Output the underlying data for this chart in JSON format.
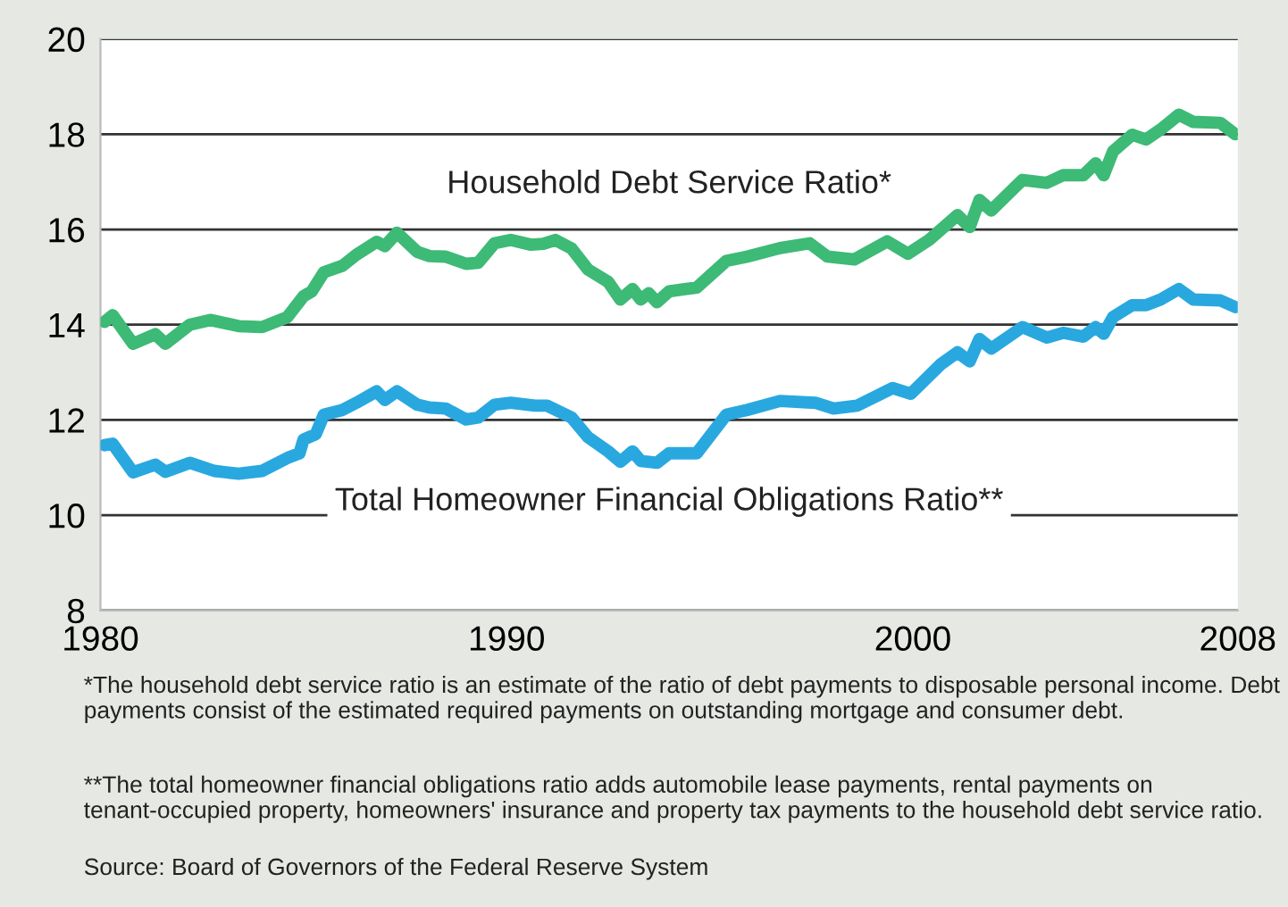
{
  "chart_data": {
    "type": "line",
    "xlim": [
      1980,
      2008
    ],
    "xticks": [
      1980,
      1990,
      2000,
      2008
    ],
    "ylim": [
      8,
      20
    ],
    "yticks": [
      8,
      10,
      12,
      14,
      16,
      18,
      20
    ],
    "grid": "y",
    "legend": false,
    "marker": "none",
    "line_style": "solid",
    "series": [
      {
        "name": "Household Debt Service Ratio*",
        "color": "#3dba76",
        "x": [
          1980.1,
          1980.3,
          1980.8,
          1981.35,
          1981.6,
          1982.2,
          1982.7,
          1983.4,
          1983.98,
          1984.6,
          1985.0,
          1985.2,
          1985.5,
          1985.96,
          1986.3,
          1986.8,
          1987.0,
          1987.3,
          1987.8,
          1988.1,
          1988.5,
          1989.0,
          1989.3,
          1989.7,
          1990.1,
          1990.6,
          1990.9,
          1991.2,
          1991.6,
          1992.0,
          1992.5,
          1992.8,
          1993.1,
          1993.3,
          1993.5,
          1993.7,
          1994.0,
          1994.68,
          1995.41,
          1995.92,
          1996.73,
          1997.46,
          1997.9,
          1998.56,
          1999.37,
          1999.88,
          2000.4,
          2001.1,
          2001.4,
          2001.64,
          2001.93,
          2002.7,
          2003.3,
          2003.7,
          2004.2,
          2004.5,
          2004.7,
          2004.93,
          2005.4,
          2005.74,
          2006.1,
          2006.55,
          2006.9,
          2007.57,
          2007.94
        ],
        "values": [
          14.06,
          14.2,
          13.6,
          13.8,
          13.6,
          14.0,
          14.1,
          13.97,
          13.95,
          14.16,
          14.6,
          14.7,
          15.1,
          15.24,
          15.47,
          15.74,
          15.65,
          15.93,
          15.53,
          15.44,
          15.43,
          15.28,
          15.3,
          15.71,
          15.78,
          15.68,
          15.7,
          15.78,
          15.6,
          15.16,
          14.9,
          14.53,
          14.75,
          14.53,
          14.66,
          14.47,
          14.7,
          14.78,
          15.34,
          15.43,
          15.61,
          15.71,
          15.43,
          15.37,
          15.75,
          15.49,
          15.78,
          16.3,
          16.05,
          16.62,
          16.4,
          17.04,
          16.98,
          17.14,
          17.14,
          17.39,
          17.14,
          17.64,
          17.99,
          17.89,
          18.1,
          18.41,
          18.26,
          18.24,
          18.0
        ]
      },
      {
        "name": "Total Homeowner Financial Obligations Ratio**",
        "color": "#29a8e0",
        "x": [
          1980.1,
          1980.3,
          1980.8,
          1981.35,
          1981.6,
          1982.2,
          1982.8,
          1983.4,
          1983.98,
          1984.6,
          1984.9,
          1985.0,
          1985.3,
          1985.5,
          1985.96,
          1986.3,
          1986.8,
          1987.0,
          1987.3,
          1987.8,
          1988.1,
          1988.5,
          1989.0,
          1989.3,
          1989.7,
          1990.1,
          1990.7,
          1991.0,
          1991.6,
          1992.0,
          1992.5,
          1992.8,
          1993.1,
          1993.3,
          1993.7,
          1994.0,
          1994.68,
          1995.41,
          1995.92,
          1996.73,
          1997.6,
          1998.05,
          1998.63,
          1999.5,
          1999.95,
          2000.69,
          2001.1,
          2001.4,
          2001.64,
          2001.93,
          2002.7,
          2003.3,
          2003.7,
          2004.2,
          2004.5,
          2004.7,
          2004.93,
          2005.4,
          2005.74,
          2006.1,
          2006.55,
          2006.9,
          2007.57,
          2007.94
        ],
        "values": [
          11.47,
          11.5,
          10.9,
          11.06,
          10.91,
          11.1,
          10.93,
          10.87,
          10.93,
          11.2,
          11.3,
          11.59,
          11.7,
          12.11,
          12.21,
          12.36,
          12.6,
          12.42,
          12.6,
          12.32,
          12.26,
          12.24,
          12.01,
          12.05,
          12.32,
          12.36,
          12.3,
          12.3,
          12.05,
          11.64,
          11.34,
          11.12,
          11.34,
          11.14,
          11.1,
          11.3,
          11.3,
          12.11,
          12.21,
          12.4,
          12.36,
          12.24,
          12.3,
          12.67,
          12.55,
          13.17,
          13.42,
          13.23,
          13.7,
          13.5,
          13.95,
          13.73,
          13.83,
          13.75,
          13.95,
          13.81,
          14.16,
          14.41,
          14.41,
          14.53,
          14.75,
          14.53,
          14.51,
          14.37
        ]
      }
    ],
    "annotations": [
      "*The household debt service ratio is an estimate of the ratio of debt payments to disposable personal income. Debt payments consist of the estimated required payments on outstanding mortgage and consumer debt.",
      "**The total homeowner financial obligations ratio adds automobile lease payments, rental payments on tenant-occupied property, homeowners' insurance and property tax payments to the household debt service ratio.",
      "Source: Board of Governors of the Federal Reserve System"
    ]
  }
}
